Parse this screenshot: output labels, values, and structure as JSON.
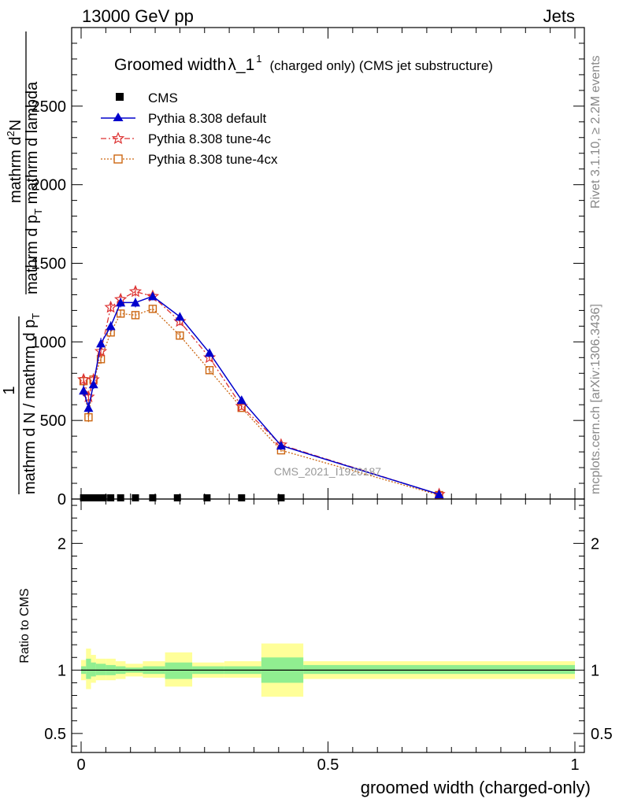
{
  "header": {
    "left": "13000 GeV pp",
    "right": "Jets"
  },
  "side_labels": {
    "rivet": "Rivet 3.1.10, ≥ 2.2M events",
    "mcplots": "mcplots.cern.ch [arXiv:1306.3436]"
  },
  "watermark": "CMS_2021_I1920187",
  "chart_data": [
    {
      "type": "line",
      "title_main": "Groomed width",
      "title_lambda": "λ_1",
      "title_sup": "1",
      "title_rest": "(charged only) (CMS jet substructure)",
      "ylabel_num_top": "mathrm d",
      "ylabel_num_top_sup": "2",
      "ylabel_num_top_rest": "N",
      "ylabel_den_top": "mathrm d p",
      "ylabel_den_top_sub": "T",
      "ylabel_den_top_rest": " mathrm d lambda",
      "ylabel_one": "1",
      "ylabel_den_bottom": "mathrm d N / mathrm d p",
      "ylabel_den_bottom_sub": "T",
      "ylim": [
        0,
        3000
      ],
      "yticks": [
        "500",
        "1000",
        "1500",
        "2000",
        "2500"
      ],
      "ytick_values": [
        500,
        1000,
        1500,
        2000,
        2500
      ],
      "ytick_zero": "0",
      "xlim": [
        -0.02,
        1.02
      ],
      "legend_position": "top-left",
      "series": [
        {
          "name": "CMS",
          "color": "#000000",
          "marker": "square",
          "x": [
            0.005,
            0.015,
            0.025,
            0.035,
            0.045,
            0.06,
            0.08,
            0.11,
            0.145,
            0.195,
            0.255,
            0.325,
            0.405
          ],
          "y": [
            0,
            0,
            0,
            0,
            0,
            0,
            0,
            0,
            0,
            0,
            0,
            0,
            0
          ]
        },
        {
          "name": "Pythia 8.308 default",
          "color": "#0000cc",
          "marker": "triangle",
          "x": [
            0.005,
            0.015,
            0.025,
            0.04,
            0.06,
            0.08,
            0.11,
            0.145,
            0.2,
            0.26,
            0.325,
            0.405,
            0.725
          ],
          "y": [
            690,
            580,
            730,
            990,
            1100,
            1250,
            1250,
            1290,
            1160,
            930,
            630,
            340,
            30
          ],
          "err": [
            35,
            35,
            30,
            35,
            30,
            30,
            30,
            25,
            25,
            20,
            15,
            10,
            5
          ]
        },
        {
          "name": "Pythia 8.308 tune-4c",
          "color": "#dd3333",
          "marker": "star",
          "x": [
            0.005,
            0.015,
            0.025,
            0.04,
            0.06,
            0.08,
            0.11,
            0.145,
            0.2,
            0.26,
            0.325,
            0.405,
            0.725
          ],
          "y": [
            760,
            650,
            760,
            940,
            1220,
            1270,
            1320,
            1290,
            1130,
            900,
            590,
            345,
            30
          ],
          "err": [
            35,
            35,
            30,
            35,
            30,
            30,
            30,
            25,
            25,
            20,
            15,
            10,
            5
          ]
        },
        {
          "name": "Pythia 8.308 tune-4cx",
          "color": "#cc6611",
          "marker": "open-square",
          "x": [
            0.005,
            0.015,
            0.025,
            0.04,
            0.06,
            0.08,
            0.11,
            0.145,
            0.2,
            0.26,
            0.325,
            0.405,
            0.725
          ],
          "y": [
            750,
            520,
            760,
            890,
            1060,
            1180,
            1170,
            1210,
            1040,
            820,
            580,
            310,
            25
          ],
          "err": [
            30,
            30,
            30,
            30,
            25,
            25,
            25,
            20,
            20,
            18,
            12,
            10,
            5
          ]
        }
      ]
    },
    {
      "type": "area",
      "ylabel": "Ratio to CMS",
      "ylim": [
        0.35,
        2.35
      ],
      "yticks": [
        "0.5",
        "1",
        "2"
      ],
      "ytick_values": [
        0.5,
        1,
        2
      ],
      "xlabel": "groomed width (charged-only)",
      "xticks": [
        "0",
        "0.5",
        "1"
      ],
      "xtick_values": [
        0,
        0.5,
        1
      ],
      "xlim": [
        -0.02,
        1.02
      ],
      "reference_line": 1,
      "bands": {
        "inner_color": "#90ee90",
        "outer_color": "#ffff99",
        "bins": [
          {
            "lo": 0.0,
            "hi": 0.01,
            "inner": [
              0.97,
              1.03
            ],
            "outer": [
              0.92,
              1.08
            ]
          },
          {
            "lo": 0.01,
            "hi": 0.02,
            "inner": [
              0.93,
              1.09
            ],
            "outer": [
              0.85,
              1.17
            ]
          },
          {
            "lo": 0.02,
            "hi": 0.03,
            "inner": [
              0.95,
              1.06
            ],
            "outer": [
              0.9,
              1.12
            ]
          },
          {
            "lo": 0.03,
            "hi": 0.05,
            "inner": [
              0.96,
              1.05
            ],
            "outer": [
              0.92,
              1.09
            ]
          },
          {
            "lo": 0.05,
            "hi": 0.07,
            "inner": [
              0.96,
              1.04
            ],
            "outer": [
              0.92,
              1.09
            ]
          },
          {
            "lo": 0.07,
            "hi": 0.09,
            "inner": [
              0.97,
              1.03
            ],
            "outer": [
              0.93,
              1.07
            ]
          },
          {
            "lo": 0.09,
            "hi": 0.125,
            "inner": [
              0.98,
              1.02
            ],
            "outer": [
              0.95,
              1.05
            ]
          },
          {
            "lo": 0.125,
            "hi": 0.17,
            "inner": [
              0.97,
              1.03
            ],
            "outer": [
              0.94,
              1.07
            ]
          },
          {
            "lo": 0.17,
            "hi": 0.225,
            "inner": [
              0.93,
              1.06
            ],
            "outer": [
              0.87,
              1.14
            ]
          },
          {
            "lo": 0.225,
            "hi": 0.29,
            "inner": [
              0.97,
              1.03
            ],
            "outer": [
              0.94,
              1.06
            ]
          },
          {
            "lo": 0.29,
            "hi": 0.365,
            "inner": [
              0.97,
              1.03
            ],
            "outer": [
              0.94,
              1.07
            ]
          },
          {
            "lo": 0.365,
            "hi": 0.45,
            "inner": [
              0.9,
              1.1
            ],
            "outer": [
              0.79,
              1.21
            ]
          },
          {
            "lo": 0.45,
            "hi": 1.0,
            "inner": [
              0.97,
              1.04
            ],
            "outer": [
              0.93,
              1.07
            ]
          }
        ]
      }
    }
  ]
}
